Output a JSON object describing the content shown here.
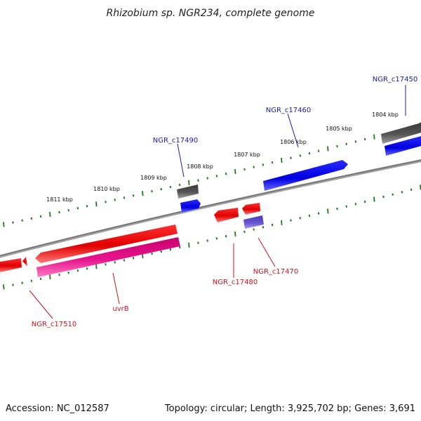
{
  "title": "Rhizobium sp. NGR234, complete genome",
  "footer": {
    "accession": "Accession: NC_012587",
    "summary": "Topology: circular; Length: 3,925,702 bp; Genes: 3,691"
  },
  "ruler_labels": [
    "1811 kbp",
    "1810 kbp",
    "1809 kbp",
    "1808 kbp",
    "1807 kbp",
    "1806 kbp",
    "1805 kbp",
    "1804 kbp"
  ],
  "gene_labels": {
    "c17450": "NGR_c17450",
    "c17460": "NGR_c17460",
    "c17490": "NGR_c17490",
    "c17470": "NGR_c17470",
    "c17480": "NGR_c17480",
    "uvrB": "uvrB",
    "c17510": "NGR_c17510"
  },
  "colors": {
    "forward_cds": "#0a0ae6",
    "reverse_cds": "#e60a0a",
    "gene_gray": "#5a5a5a",
    "uvrB_gene": "#e6148c",
    "c17470_cds": "#7060d0",
    "backbone": "#8a8a8a",
    "tick_green": "#1f7a1f"
  }
}
